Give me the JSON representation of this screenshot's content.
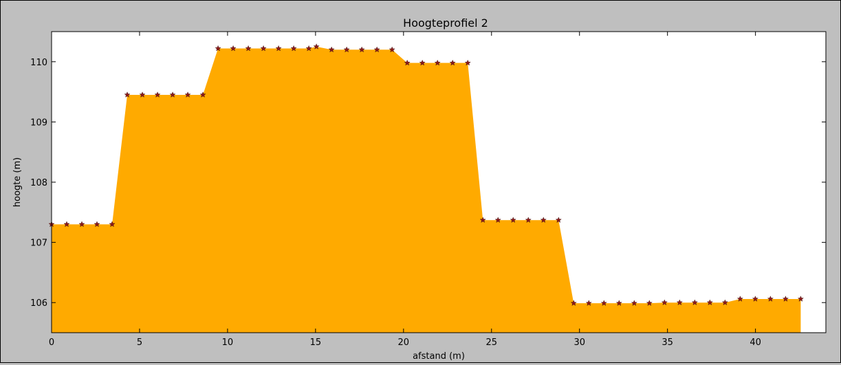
{
  "chart_data": {
    "type": "area",
    "title": "Hoogteprofiel 2",
    "xlabel": "afstand (m)",
    "ylabel": "hoogte (m)",
    "xlim": [
      0,
      44
    ],
    "ylim": [
      105.5,
      110.5
    ],
    "xticks": [
      0,
      5,
      10,
      15,
      20,
      25,
      30,
      35,
      40
    ],
    "yticks": [
      106,
      107,
      108,
      109,
      110
    ],
    "grid": false,
    "fill_color": "#ffaa00",
    "marker": "star",
    "marker_color": "#8b1a1a",
    "series": [
      {
        "x": [
          0,
          0.86,
          1.72,
          2.58,
          3.44,
          4.3,
          5.16,
          6.02,
          6.88,
          7.74,
          8.6,
          9.46,
          10.32,
          11.18,
          12.04,
          12.9,
          13.76,
          14.62,
          15.05,
          15.91,
          16.77,
          17.63,
          18.49,
          19.35,
          20.21,
          21.07,
          21.93,
          22.79,
          23.65,
          24.51,
          25.37,
          26.23,
          27.09,
          27.95,
          28.81,
          29.67,
          30.53,
          31.39,
          32.25,
          33.11,
          33.97,
          34.83,
          35.69,
          36.55,
          37.41,
          38.27,
          39.13,
          39.99,
          40.85,
          41.71,
          42.57
        ],
        "y": [
          107.3,
          107.3,
          107.3,
          107.3,
          107.3,
          109.45,
          109.45,
          109.45,
          109.45,
          109.45,
          109.45,
          110.22,
          110.22,
          110.22,
          110.22,
          110.22,
          110.22,
          110.22,
          110.25,
          110.2,
          110.2,
          110.2,
          110.2,
          110.2,
          109.98,
          109.98,
          109.98,
          109.98,
          109.98,
          107.37,
          107.37,
          107.37,
          107.37,
          107.37,
          107.37,
          105.99,
          105.99,
          105.99,
          105.99,
          105.99,
          105.99,
          106.0,
          106.0,
          106.0,
          106.0,
          106.0,
          106.06,
          106.06,
          106.06,
          106.06,
          106.06
        ]
      }
    ]
  }
}
